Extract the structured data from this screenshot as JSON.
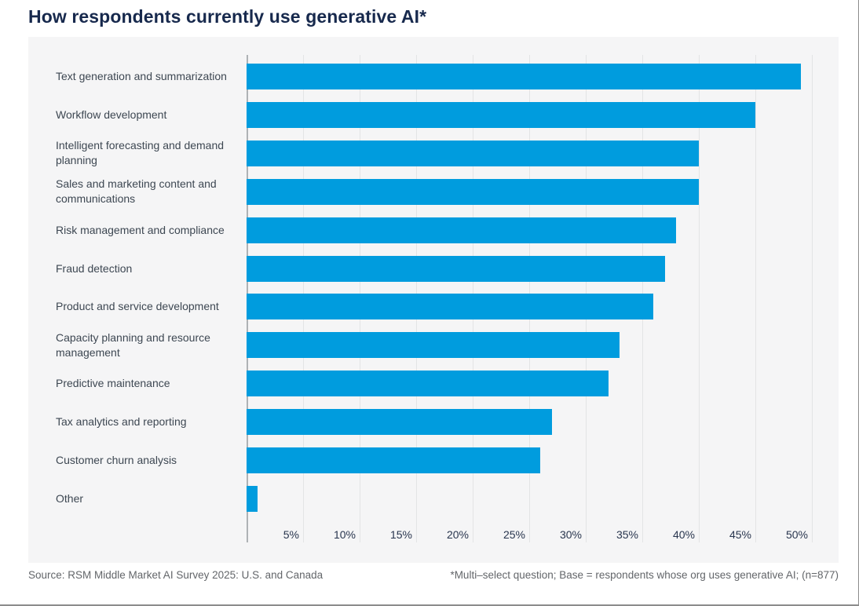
{
  "page": {
    "title": "How respondents currently use generative AI*",
    "footer": {
      "source": "Source: RSM Middle Market AI Survey 2025: U.S. and Canada",
      "note": "*Multi–select question; Base = respondents whose org uses generative AI; (n=877)"
    }
  },
  "colors": {
    "bar": "#009cde",
    "title": "#17294d",
    "category_text": "#3d4752",
    "tick_text": "#28354e",
    "footer_text": "#63666a",
    "panel_background": "#f5f5f6",
    "gridline": "#e3e4e5",
    "axis_baseline": "#aeb2b5",
    "outer_border": "#8c8c8c"
  },
  "chart_data": {
    "type": "bar",
    "orientation": "horizontal",
    "title": "How respondents currently use generative AI*",
    "categories": [
      "Text generation and summarization",
      "Workflow development",
      "Intelligent forecasting and demand planning",
      "Sales and marketing content and communications",
      "Risk management and compliance",
      "Fraud detection",
      "Product and service development",
      "Capacity planning and resource management",
      "Predictive maintenance",
      "Tax analytics and reporting",
      "Customer churn analysis",
      "Other"
    ],
    "values": [
      49,
      45,
      40,
      40,
      38,
      37,
      36,
      33,
      32,
      27,
      26,
      1
    ],
    "unit": "%",
    "x_tick_labels": [
      "5%",
      "10%",
      "15%",
      "20%",
      "25%",
      "30%",
      "35%",
      "40%",
      "45%",
      "50%"
    ],
    "x_tick_values": [
      5,
      10,
      15,
      20,
      25,
      30,
      35,
      40,
      45,
      50
    ],
    "xlim": [
      0,
      50
    ],
    "grid": "vertical-only",
    "legend": "none",
    "bar_color": "#009cde"
  }
}
